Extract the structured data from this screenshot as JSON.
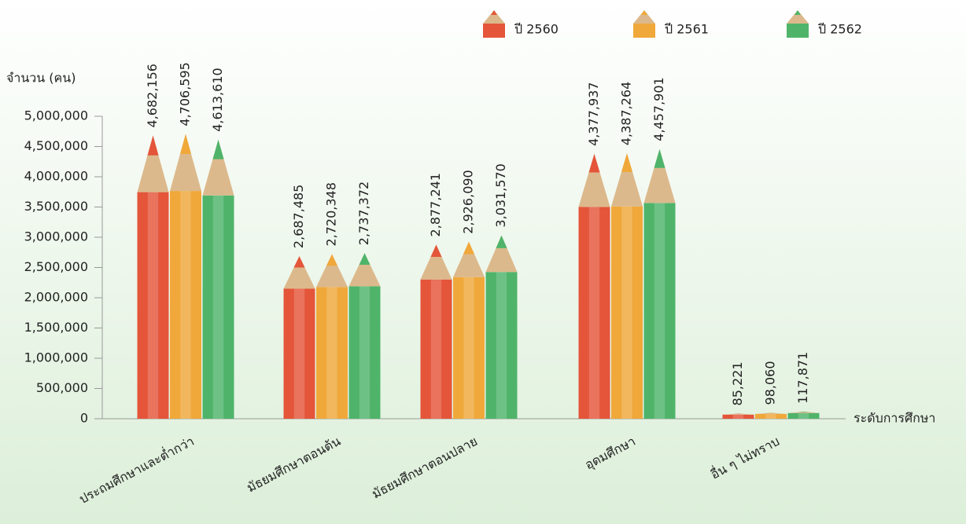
{
  "chart_data": {
    "type": "bar",
    "y_label": "จำนวน (คน)",
    "x_label": "ระดับการศึกษา",
    "categories": [
      "ประถมศึกษาและต่ำกว่า",
      "มัธยมศึกษาตอนต้น",
      "มัธยมศึกษาตอนปลาย",
      "อุดมศึกษา",
      "อื่น ๆ ไม่ทราบ"
    ],
    "series": [
      {
        "name": "ปี 2560",
        "color": "#e4553a",
        "values": [
          4682156,
          2687485,
          2877241,
          4377937,
          85221
        ],
        "value_labels": [
          "4,682,156",
          "2,687,485",
          "2,877,241",
          "4,377,937",
          "85,221"
        ]
      },
      {
        "name": "ปี 2561",
        "color": "#f0a83a",
        "values": [
          4706595,
          2720348,
          2926090,
          4387264,
          98060
        ],
        "value_labels": [
          "4,706,595",
          "2,720,348",
          "2,926,090",
          "4,387,264",
          "98,060"
        ]
      },
      {
        "name": "ปี 2562",
        "color": "#4fb46a",
        "values": [
          4613610,
          2737372,
          3031570,
          4457901,
          117871
        ],
        "value_labels": [
          "4,613,610",
          "2,737,372",
          "3,031,570",
          "4,457,901",
          "117,871"
        ]
      }
    ],
    "ylim": [
      0,
      5000000
    ],
    "yticks": [
      0,
      {
        "value": 500000,
        "label": "500,000"
      },
      {
        "value": 1000000,
        "label": "1,000,000"
      },
      {
        "value": 1500000,
        "label": "1,500,000"
      },
      {
        "value": 2000000,
        "label": "2,000,000"
      },
      {
        "value": 2500000,
        "label": "2,500,000"
      },
      {
        "value": 3000000,
        "label": "3,000,000"
      },
      {
        "value": 3500000,
        "label": "3,500,000"
      },
      {
        "value": 4000000,
        "label": "4,000,000"
      },
      {
        "value": 4500000,
        "label": "4,500,000"
      },
      {
        "value": 5000000,
        "label": "5,000,000"
      }
    ],
    "legend_position": "top-right"
  }
}
